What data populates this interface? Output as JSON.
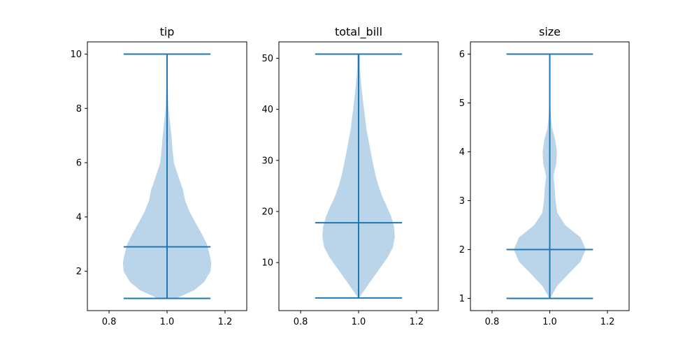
{
  "chart_data": [
    {
      "type": "violin",
      "title": "tip",
      "xlim": [
        0.725,
        1.275
      ],
      "ylim": [
        0.55,
        10.45
      ],
      "x_ticks": [
        "0.8",
        "1.0",
        "1.2"
      ],
      "y_ticks": [
        "2",
        "4",
        "6",
        "8",
        "10"
      ],
      "position": 1.0,
      "min": 1.0,
      "median": 2.9,
      "max": 10.0,
      "density": [
        [
          1.0,
          0.25
        ],
        [
          1.3,
          0.75
        ],
        [
          1.6,
          1.02
        ],
        [
          2.0,
          1.2
        ],
        [
          2.3,
          1.22
        ],
        [
          2.6,
          1.18
        ],
        [
          3.0,
          1.1
        ],
        [
          3.4,
          0.95
        ],
        [
          3.8,
          0.78
        ],
        [
          4.2,
          0.62
        ],
        [
          4.6,
          0.5
        ],
        [
          5.0,
          0.44
        ],
        [
          5.3,
          0.36
        ],
        [
          5.7,
          0.26
        ],
        [
          6.0,
          0.19
        ],
        [
          6.5,
          0.15
        ],
        [
          7.0,
          0.12
        ],
        [
          7.5,
          0.08
        ],
        [
          8.0,
          0.04
        ],
        [
          9.0,
          0.015
        ],
        [
          10.0,
          0.01
        ]
      ]
    },
    {
      "type": "violin",
      "title": "total_bill",
      "xlim": [
        0.725,
        1.275
      ],
      "ylim": [
        0.6,
        53.2
      ],
      "x_ticks": [
        "0.8",
        "1.0",
        "1.2"
      ],
      "y_ticks": [
        "10",
        "20",
        "30",
        "40",
        "50"
      ],
      "position": 1.0,
      "min": 3.07,
      "median": 17.8,
      "max": 50.81,
      "density": [
        [
          3.07,
          0.01
        ],
        [
          5,
          0.2
        ],
        [
          8,
          0.5
        ],
        [
          11,
          0.8
        ],
        [
          13,
          0.95
        ],
        [
          15,
          1.0
        ],
        [
          17,
          0.98
        ],
        [
          19,
          0.9
        ],
        [
          21,
          0.78
        ],
        [
          23,
          0.65
        ],
        [
          25,
          0.55
        ],
        [
          27,
          0.47
        ],
        [
          30,
          0.38
        ],
        [
          33,
          0.3
        ],
        [
          36,
          0.22
        ],
        [
          40,
          0.15
        ],
        [
          43,
          0.1
        ],
        [
          46,
          0.06
        ],
        [
          48,
          0.04
        ],
        [
          50,
          0.04
        ],
        [
          50.81,
          0.03
        ]
      ]
    },
    {
      "type": "violin",
      "title": "size",
      "xlim": [
        0.725,
        1.275
      ],
      "ylim": [
        0.75,
        6.25
      ],
      "x_ticks": [
        "0.8",
        "1.0",
        "1.2"
      ],
      "y_ticks": [
        "1",
        "2",
        "3",
        "4",
        "5",
        "6"
      ],
      "position": 1.0,
      "min": 1.0,
      "median": 2.0,
      "max": 6.0,
      "density": [
        [
          1.0,
          0.01
        ],
        [
          1.25,
          0.2
        ],
        [
          1.5,
          0.52
        ],
        [
          1.75,
          0.85
        ],
        [
          2.0,
          1.0
        ],
        [
          2.25,
          0.85
        ],
        [
          2.5,
          0.43
        ],
        [
          2.75,
          0.21
        ],
        [
          3.0,
          0.16
        ],
        [
          3.25,
          0.14
        ],
        [
          3.5,
          0.1
        ],
        [
          3.75,
          0.18
        ],
        [
          4.0,
          0.2
        ],
        [
          4.25,
          0.15
        ],
        [
          4.5,
          0.06
        ],
        [
          4.75,
          0.03
        ],
        [
          5.0,
          0.02
        ],
        [
          5.5,
          0.015
        ],
        [
          6.0,
          0.01
        ]
      ]
    }
  ],
  "colors": {
    "violin_fill": "#bad5e9",
    "violin_lines": "#1f77b4",
    "axes": "#000000"
  }
}
